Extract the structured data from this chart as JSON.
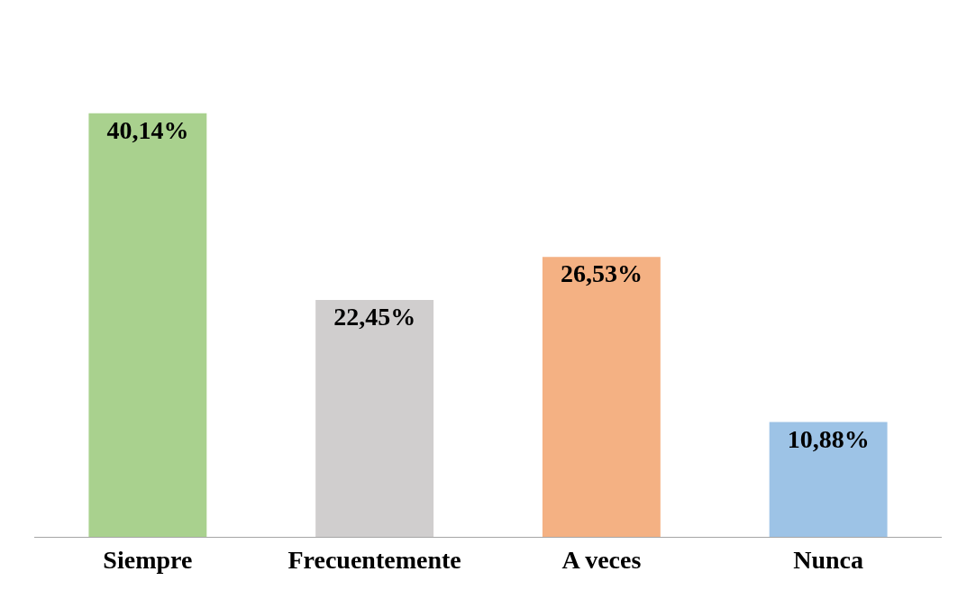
{
  "chart_data": {
    "type": "bar",
    "relative": false,
    "categories": [
      "Siempre",
      "Frecuentemente",
      "A veces",
      "Nunca"
    ],
    "values": [
      40.14,
      22.45,
      26.53,
      10.88
    ],
    "colors": [
      "#a9d18e",
      "#d0cece",
      "#f4b183",
      "#9dc3e6"
    ],
    "value_labels": [
      "40,14%",
      "22,45%",
      "26,53%",
      "10,88%"
    ],
    "grid": false,
    "legend": false
  }
}
